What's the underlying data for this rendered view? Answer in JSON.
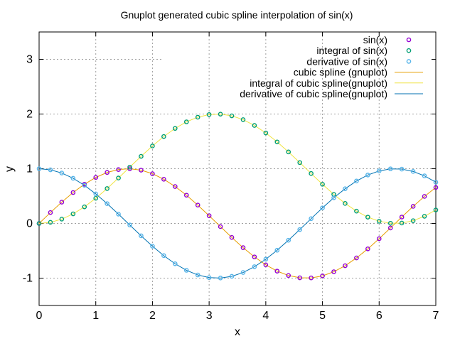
{
  "chart_data": {
    "type": "line",
    "title": "Gnuplot generated cubic spline interpolation of sin(x)",
    "xlabel": "x",
    "ylabel": "y",
    "xlim": [
      0,
      7
    ],
    "ylim": [
      -1.5,
      3.5
    ],
    "xticks": [
      0,
      1,
      2,
      3,
      4,
      5,
      6,
      7
    ],
    "yticks": [
      -1,
      0,
      1,
      2,
      3
    ],
    "xtick_labels": [
      "0",
      "1",
      "2",
      "3",
      "4",
      "5",
      "6",
      "7"
    ],
    "ytick_labels": [
      "-1",
      "0",
      "1",
      "2",
      "3"
    ],
    "grid": true,
    "legend_position": "top-right",
    "sample_x": [
      0,
      0.2,
      0.4,
      0.6,
      0.8,
      1.0,
      1.2,
      1.4,
      1.6,
      1.8,
      2.0,
      2.2,
      2.4,
      2.6,
      2.8,
      3.0,
      3.2,
      3.4,
      3.6,
      3.8,
      4.0,
      4.2,
      4.4,
      4.6,
      4.8,
      5.0,
      5.2,
      5.4,
      5.6,
      5.8,
      6.0,
      6.2,
      6.4,
      6.6,
      6.8,
      7.0
    ],
    "series": [
      {
        "name": "sin(x)",
        "kind": "points",
        "marker": "circle",
        "color": "#9400d3",
        "values": [
          0.0,
          0.199,
          0.389,
          0.565,
          0.717,
          0.841,
          0.932,
          0.985,
          1.0,
          0.974,
          0.909,
          0.808,
          0.675,
          0.516,
          0.335,
          0.141,
          -0.058,
          -0.256,
          -0.443,
          -0.612,
          -0.757,
          -0.872,
          -0.952,
          -0.994,
          -0.996,
          -0.959,
          -0.883,
          -0.773,
          -0.631,
          -0.465,
          -0.279,
          -0.083,
          0.117,
          0.312,
          0.494,
          0.657
        ]
      },
      {
        "name": "integral of sin(x)",
        "kind": "points",
        "marker": "circle",
        "color": "#009e73",
        "values": [
          0.0,
          0.02,
          0.079,
          0.175,
          0.303,
          0.46,
          0.638,
          0.83,
          1.029,
          1.227,
          1.416,
          1.589,
          1.737,
          1.857,
          1.942,
          1.99,
          1.998,
          1.967,
          1.897,
          1.791,
          1.654,
          1.49,
          1.307,
          1.112,
          0.913,
          0.716,
          0.531,
          0.366,
          0.225,
          0.115,
          0.04,
          0.003,
          0.007,
          0.05,
          0.131,
          0.246
        ]
      },
      {
        "name": "derivative of sin(x)",
        "kind": "points",
        "marker": "circle",
        "color": "#56b4e9",
        "values": [
          1.0,
          0.98,
          0.921,
          0.825,
          0.697,
          0.54,
          0.362,
          0.17,
          -0.029,
          -0.227,
          -0.416,
          -0.589,
          -0.737,
          -0.857,
          -0.942,
          -0.99,
          -0.998,
          -0.967,
          -0.897,
          -0.791,
          -0.654,
          -0.49,
          -0.307,
          -0.112,
          0.087,
          0.284,
          0.469,
          0.634,
          0.775,
          0.885,
          0.96,
          0.997,
          0.993,
          0.95,
          0.869,
          0.754
        ]
      },
      {
        "name": "cubic spline (gnuplot)",
        "kind": "line",
        "color": "#e69f00",
        "values": [
          0.0,
          0.199,
          0.389,
          0.565,
          0.717,
          0.841,
          0.932,
          0.985,
          1.0,
          0.974,
          0.909,
          0.808,
          0.675,
          0.516,
          0.335,
          0.141,
          -0.058,
          -0.256,
          -0.443,
          -0.612,
          -0.757,
          -0.872,
          -0.952,
          -0.994,
          -0.996,
          -0.959,
          -0.883,
          -0.773,
          -0.631,
          -0.465,
          -0.279,
          -0.083,
          0.117,
          0.312,
          0.494,
          0.657
        ]
      },
      {
        "name": "integral of cubic spline(gnuplot)",
        "kind": "line",
        "color": "#f0e442",
        "values": [
          0.0,
          0.02,
          0.079,
          0.175,
          0.303,
          0.46,
          0.638,
          0.83,
          1.029,
          1.227,
          1.416,
          1.589,
          1.737,
          1.857,
          1.942,
          1.99,
          1.998,
          1.967,
          1.897,
          1.791,
          1.654,
          1.49,
          1.307,
          1.112,
          0.913,
          0.716,
          0.531,
          0.366,
          0.225,
          0.115,
          0.04,
          0.003,
          0.007,
          0.05,
          0.131,
          0.246
        ]
      },
      {
        "name": "derivative of cubic spline(gnuplot)",
        "kind": "line",
        "color": "#0072b2",
        "values": [
          1.0,
          0.98,
          0.921,
          0.825,
          0.697,
          0.54,
          0.362,
          0.17,
          -0.029,
          -0.227,
          -0.416,
          -0.589,
          -0.737,
          -0.857,
          -0.942,
          -0.99,
          -0.998,
          -0.967,
          -0.897,
          -0.791,
          -0.654,
          -0.49,
          -0.307,
          -0.112,
          0.087,
          0.284,
          0.469,
          0.634,
          0.775,
          0.885,
          0.96,
          0.997,
          0.993,
          0.95,
          0.869,
          0.754
        ]
      }
    ]
  }
}
